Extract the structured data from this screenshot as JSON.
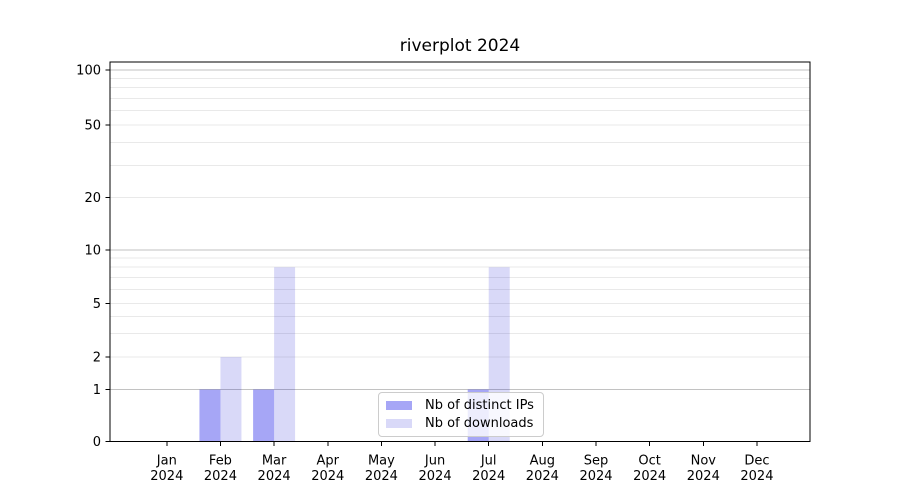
{
  "chart_data": {
    "type": "bar",
    "title": "riverplot 2024",
    "categories": [
      "Jan",
      "Feb",
      "Mar",
      "Apr",
      "May",
      "Jun",
      "Jul",
      "Aug",
      "Sep",
      "Oct",
      "Nov",
      "Dec"
    ],
    "year": "2024",
    "series": [
      {
        "name": "Nb of distinct IPs",
        "color": "rgba(0,0,230,0.35)",
        "values": [
          0,
          1,
          1,
          0,
          0,
          0,
          1,
          0,
          0,
          0,
          0,
          0
        ]
      },
      {
        "name": "Nb of downloads",
        "color": "rgba(0,0,210,0.15)",
        "values": [
          0,
          2,
          8,
          0,
          0,
          0,
          8,
          0,
          0,
          0,
          0,
          0
        ]
      }
    ],
    "y_axis": {
      "scale": "log(1+x)",
      "tick_values": [
        0,
        1,
        2,
        5,
        10,
        20,
        50,
        100
      ],
      "tick_labels": [
        "0",
        "1",
        "2",
        "5",
        "10",
        "20",
        "50",
        "100"
      ],
      "major_gridlines": [
        1,
        10,
        100
      ],
      "minor_gridlines": [
        2,
        3,
        4,
        5,
        6,
        7,
        8,
        9,
        20,
        30,
        40,
        50,
        60,
        70,
        80,
        90
      ],
      "ylim": [
        0,
        112
      ]
    },
    "legend": {
      "position": "lower center",
      "entries": [
        "Nb of distinct IPs",
        "Nb of downloads"
      ]
    },
    "grid": true
  },
  "colors": {
    "major_grid": "#c2c2c2",
    "minor_grid": "#e9e9e9",
    "axis": "#000000",
    "text": "#000000",
    "legend_border": "#cccccc",
    "legend_bg": "rgba(255,255,255,0.8)"
  }
}
